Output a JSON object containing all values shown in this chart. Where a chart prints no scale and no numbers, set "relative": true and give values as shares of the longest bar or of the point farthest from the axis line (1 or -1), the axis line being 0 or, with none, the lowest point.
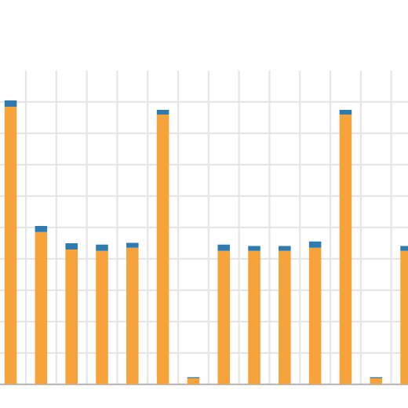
{
  "chart_data": {
    "type": "bar",
    "relative": true,
    "stacked": true,
    "grid": true,
    "categories": [
      null,
      null,
      null,
      null,
      null,
      null,
      null,
      null,
      null,
      null,
      null,
      null,
      null,
      null
    ],
    "series": [
      {
        "color": "#f5a33a",
        "values": [
          0.978,
          0.536,
          0.475,
          0.47,
          0.481,
          0.95,
          0.022,
          0.47,
          0.47,
          0.47,
          0.481,
          0.95,
          0.022,
          0.47
        ]
      },
      {
        "color": "#2e7bb0",
        "values": [
          0.022,
          0.022,
          0.022,
          0.022,
          0.017,
          0.017,
          0.003,
          0.022,
          0.017,
          0.017,
          0.022,
          0.017,
          0.003,
          0.017
        ]
      }
    ]
  }
}
